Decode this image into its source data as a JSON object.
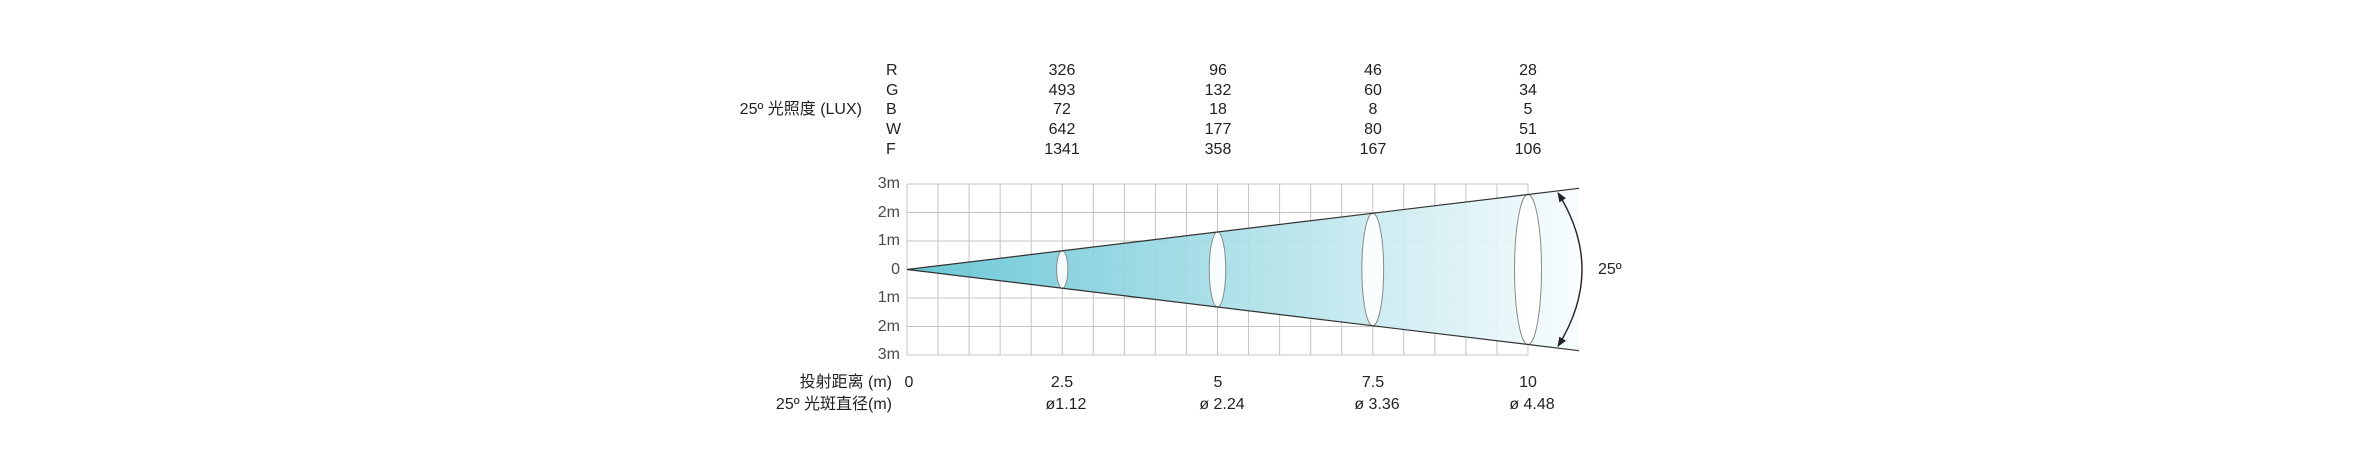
{
  "illuminance": {
    "label": "25º 光照度 (LUX)",
    "rows": [
      {
        "channel": "R",
        "values": [
          "326",
          "96",
          "46",
          "28"
        ]
      },
      {
        "channel": "G",
        "values": [
          "493",
          "132",
          "60",
          "34"
        ]
      },
      {
        "channel": "B",
        "values": [
          "72",
          "18",
          "8",
          "5"
        ]
      },
      {
        "channel": "W",
        "values": [
          "642",
          "177",
          "80",
          "51"
        ]
      },
      {
        "channel": "F",
        "values": [
          "1341",
          "358",
          "167",
          "106"
        ]
      }
    ]
  },
  "beam_diagram": {
    "y_axis_labels": [
      "3m",
      "2m",
      "1m",
      "0",
      "1m",
      "2m",
      "3m"
    ],
    "beam_angle_label": "25º",
    "beam_color": "#5fc3d3",
    "beam_fade_color": "#f7fcfd",
    "grid_color": "#c4c4c4",
    "edge_color": "#333333"
  },
  "distance": {
    "label": "投射距离 (m)",
    "values": [
      "0",
      "2.5",
      "5",
      "7.5",
      "10"
    ]
  },
  "spot_diameter": {
    "label": "25º 光斑直径(m)",
    "values": [
      "ø1.12",
      "ø 2.24",
      "ø 3.36",
      "ø 4.48"
    ]
  }
}
